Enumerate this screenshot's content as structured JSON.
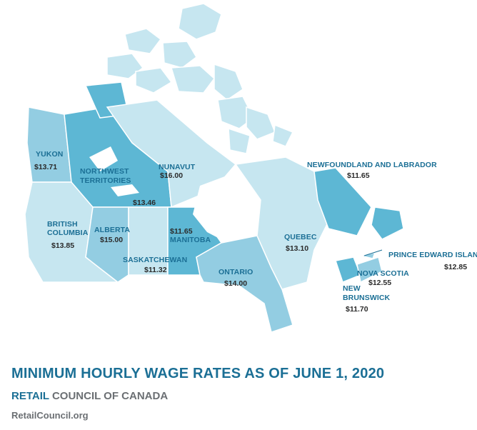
{
  "colors": {
    "dark": "#5db7d4",
    "medium": "#93cde2",
    "light": "#c6e6f0",
    "label": "#1b6f95",
    "footer_gray": "#6b6f73"
  },
  "provinces": [
    {
      "id": "yukon",
      "name": "YUKON",
      "wage": "$13.71",
      "tone": "medium"
    },
    {
      "id": "northwest-territories",
      "name": [
        "NORTHWEST",
        "TERRITORIES"
      ],
      "wage": "$13.46",
      "tone": "dark"
    },
    {
      "id": "nunavut",
      "name": "NUNAVUT",
      "wage": "$16.00",
      "tone": "light"
    },
    {
      "id": "british-columbia",
      "name": [
        "BRITISH",
        "COLUMBIA"
      ],
      "wage": "$13.85",
      "tone": "light"
    },
    {
      "id": "alberta",
      "name": "ALBERTA",
      "wage": "$15.00",
      "tone": "medium"
    },
    {
      "id": "saskatchewan",
      "name": "SASKATCHEWAN",
      "wage": "$11.32",
      "tone": "light"
    },
    {
      "id": "manitoba",
      "name": "MANITOBA",
      "wage": "$11.65",
      "tone": "dark"
    },
    {
      "id": "ontario",
      "name": "ONTARIO",
      "wage": "$14.00",
      "tone": "medium"
    },
    {
      "id": "quebec",
      "name": "QUEBEC",
      "wage": "$13.10",
      "tone": "light"
    },
    {
      "id": "newfoundland-and-labrador",
      "name": "NEWFOUNDLAND AND LABRADOR",
      "wage": "$11.65",
      "tone": "dark"
    },
    {
      "id": "prince-edward-island",
      "name": "PRINCE EDWARD ISLAND",
      "wage": "$12.85",
      "tone": "medium"
    },
    {
      "id": "nova-scotia",
      "name": "NOVA SCOTIA",
      "wage": "$12.55",
      "tone": "medium"
    },
    {
      "id": "new-brunswick",
      "name": [
        "NEW",
        "BRUNSWICK"
      ],
      "wage": "$11.70",
      "tone": "dark"
    }
  ],
  "footer": {
    "title": "MINIMUM HOURLY WAGE RATES AS OF JUNE 1, 2020",
    "subtitle_brand": "RETAIL",
    "subtitle_rest": " COUNCIL OF CANADA",
    "website": "RetailCouncil.org"
  }
}
